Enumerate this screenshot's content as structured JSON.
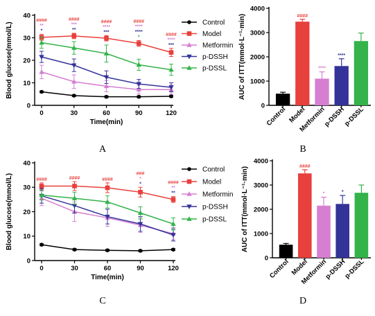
{
  "colors": {
    "Control": "#000000",
    "Model": "#e8403c",
    "Metformin": "#d67fd0",
    "p-DSSH": "#333399",
    "p-DSSL": "#33b34a"
  },
  "legend": [
    "Control",
    "Model",
    "Metformin",
    "p-DSSH",
    "p-DSSL"
  ],
  "chart_data": [
    {
      "panel_label": "A",
      "type": "line",
      "xlabel": "Time(min)",
      "ylabel": "Blood glucose(mmol/L)",
      "x": [
        0,
        30,
        60,
        90,
        120
      ],
      "xlim": [
        0,
        120
      ],
      "ylim": [
        0,
        40
      ],
      "yticks": [
        0,
        10,
        20,
        30,
        40
      ],
      "legend_position": "right",
      "series": [
        {
          "name": "Control",
          "marker": "circle",
          "values": [
            6,
            4.3,
            3.8,
            3.8,
            4
          ],
          "errors": [
            0.4,
            0.4,
            0.4,
            0.4,
            0.4
          ]
        },
        {
          "name": "Model",
          "marker": "square",
          "values": [
            30.2,
            30.8,
            29.8,
            27.5,
            23.5
          ],
          "errors": [
            1.3,
            1.2,
            1.2,
            1.3,
            1.8
          ]
        },
        {
          "name": "Metformin",
          "marker": "triangle-up",
          "values": [
            14.8,
            10.5,
            8.5,
            7,
            7
          ],
          "errors": [
            3,
            3,
            2.5,
            2,
            2
          ]
        },
        {
          "name": "p-DSSH",
          "marker": "triangle-down",
          "values": [
            21.5,
            17.8,
            12.5,
            9.5,
            8
          ],
          "errors": [
            2.5,
            2.8,
            2.8,
            2,
            2
          ]
        },
        {
          "name": "p-DSSL",
          "marker": "triangle-up",
          "values": [
            27.8,
            25.5,
            23,
            18,
            15.8
          ],
          "errors": [
            2.5,
            2.8,
            3.8,
            2.5,
            2.5
          ]
        }
      ],
      "significance": [
        {
          "x": 0,
          "labels": [
            {
              "text": "####",
              "series": "Model"
            },
            {
              "text": "**",
              "series": "Metformin"
            },
            {
              "text": "*",
              "series": "p-DSSH"
            }
          ]
        },
        {
          "x": 30,
          "labels": [
            {
              "text": "####",
              "series": "Model"
            },
            {
              "text": "***",
              "series": "Metformin"
            },
            {
              "text": "**",
              "series": "p-DSSH"
            }
          ]
        },
        {
          "x": 60,
          "labels": [
            {
              "text": "####",
              "series": "Model"
            },
            {
              "text": "****",
              "series": "Metformin"
            },
            {
              "text": "***",
              "series": "p-DSSH"
            }
          ]
        },
        {
          "x": 90,
          "labels": [
            {
              "text": "####",
              "series": "Model"
            },
            {
              "text": "****",
              "series": "Metformin"
            },
            {
              "text": "****",
              "series": "p-DSSH"
            },
            {
              "text": "*",
              "series": "p-DSSL"
            }
          ]
        },
        {
          "x": 120,
          "labels": [
            {
              "text": "####",
              "series": "Model"
            },
            {
              "text": "****",
              "series": "Metformin"
            },
            {
              "text": "***",
              "series": "p-DSSH"
            }
          ]
        }
      ]
    },
    {
      "panel_label": "B",
      "type": "bar",
      "ylabel": "AUC of ITT(mmol·L⁻¹·min)",
      "categories": [
        "Control",
        "Model",
        "Metformin",
        "p-DSSH",
        "p-DSSL"
      ],
      "values": [
        480,
        3450,
        1100,
        1620,
        2650
      ],
      "errors": [
        60,
        100,
        280,
        300,
        330
      ],
      "ylim": [
        0,
        4000
      ],
      "yticks": [
        0,
        1000,
        2000,
        3000,
        4000
      ],
      "significance": [
        {
          "category": "Model",
          "text": "####"
        },
        {
          "category": "Metformin",
          "text": "****"
        },
        {
          "category": "p-DSSH",
          "text": "****"
        }
      ]
    },
    {
      "panel_label": "C",
      "type": "line",
      "xlabel": "Time(min)",
      "ylabel": "Blood glucose(mmol/L)",
      "x": [
        0,
        30,
        60,
        90,
        120
      ],
      "xlim": [
        0,
        120
      ],
      "ylim": [
        0,
        40
      ],
      "yticks": [
        0,
        10,
        20,
        30,
        40
      ],
      "legend_position": "right",
      "series": [
        {
          "name": "Control",
          "marker": "circle",
          "values": [
            6.5,
            4.5,
            4.2,
            4,
            4.5
          ],
          "errors": [
            0.4,
            0.4,
            0.4,
            0.4,
            0.4
          ]
        },
        {
          "name": "Model",
          "marker": "square",
          "values": [
            30.5,
            30.5,
            29.8,
            28,
            25
          ],
          "errors": [
            1.3,
            1.8,
            2,
            2,
            1.2
          ]
        },
        {
          "name": "Metformin",
          "marker": "triangle-up",
          "values": [
            25.5,
            20,
            17.5,
            14.5,
            11
          ],
          "errors": [
            3,
            4,
            3.5,
            3,
            2.5
          ]
        },
        {
          "name": "p-DSSH",
          "marker": "triangle-down",
          "values": [
            26.5,
            22.5,
            18,
            15,
            10.5
          ],
          "errors": [
            3,
            3,
            3,
            3,
            2.5
          ]
        },
        {
          "name": "p-DSSL",
          "marker": "triangle-up",
          "values": [
            26.8,
            25.5,
            24,
            19.5,
            15
          ],
          "errors": [
            2,
            2.5,
            2.5,
            2.5,
            2.5
          ]
        }
      ],
      "significance": [
        {
          "x": 0,
          "labels": [
            {
              "text": "####",
              "series": "Model"
            }
          ]
        },
        {
          "x": 30,
          "labels": [
            {
              "text": "####",
              "series": "Model"
            }
          ]
        },
        {
          "x": 60,
          "labels": [
            {
              "text": "####",
              "series": "Model"
            }
          ]
        },
        {
          "x": 90,
          "labels": [
            {
              "text": "###",
              "series": "Model"
            },
            {
              "text": "*",
              "series": "Metformin"
            },
            {
              "text": "*",
              "series": "p-DSSH"
            }
          ]
        },
        {
          "x": 120,
          "labels": [
            {
              "text": "####",
              "series": "Model"
            },
            {
              "text": "**",
              "series": "Metformin"
            },
            {
              "text": "**",
              "series": "p-DSSH"
            }
          ]
        }
      ]
    },
    {
      "panel_label": "D",
      "type": "bar",
      "ylabel": "AUC of ITT(mmol·L⁻¹·min)",
      "categories": [
        "Control",
        "Model",
        "Metformin",
        "p-DSSH",
        "p-DSSL"
      ],
      "values": [
        540,
        3480,
        2150,
        2220,
        2680
      ],
      "errors": [
        50,
        150,
        350,
        350,
        320
      ],
      "ylim": [
        0,
        4000
      ],
      "yticks": [
        0,
        1000,
        2000,
        3000,
        4000
      ],
      "significance": [
        {
          "category": "Model",
          "text": "####"
        },
        {
          "category": "Metformin",
          "text": "*"
        },
        {
          "category": "p-DSSH",
          "text": "*"
        }
      ]
    }
  ]
}
